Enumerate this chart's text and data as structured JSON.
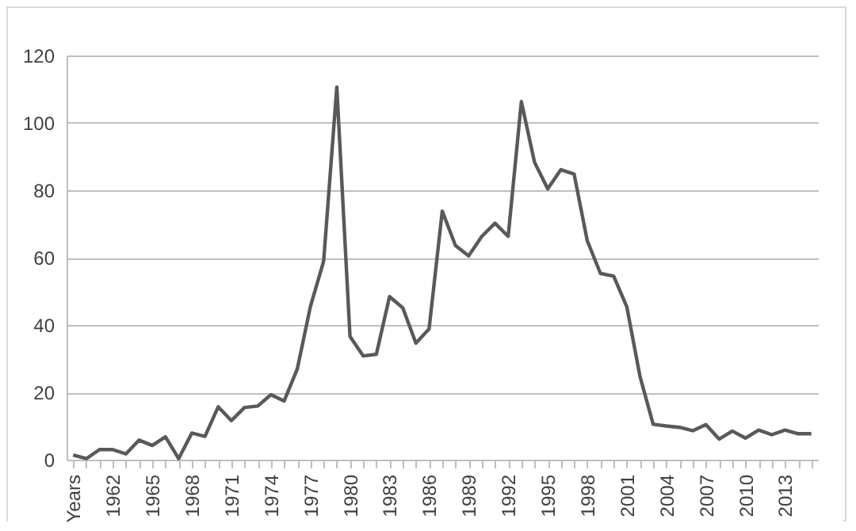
{
  "chart_data": {
    "type": "line",
    "categories": [
      "Years",
      null,
      null,
      "1962",
      null,
      null,
      "1965",
      null,
      null,
      "1968",
      null,
      null,
      "1971",
      null,
      null,
      "1974",
      null,
      null,
      "1977",
      null,
      null,
      "1980",
      null,
      null,
      "1983",
      null,
      null,
      "1986",
      null,
      null,
      "1989",
      null,
      null,
      "1992",
      null,
      null,
      "1995",
      null,
      null,
      "1998",
      null,
      null,
      "2001",
      null,
      null,
      "2004",
      null,
      null,
      "2007",
      null,
      null,
      "2010",
      null,
      null,
      "2013",
      null,
      null
    ],
    "series": [
      {
        "color": "#595959",
        "values": [
          1.4,
          0.3,
          3,
          3,
          1.7,
          5.8,
          4.2,
          6.8,
          0.3,
          7.9,
          6.9,
          15.7,
          11.6,
          15.5,
          15.9,
          19.3,
          17.4,
          26.9,
          45.5,
          58.9,
          110.6,
          36.6,
          30.8,
          31.3,
          48.4,
          45.1,
          34.6,
          38.8,
          73.8,
          63.6,
          60.5,
          66.3,
          70.2,
          66.3,
          106.3,
          88.3,
          80.4,
          86.1,
          84.8,
          65.0,
          55.3,
          54.5,
          45.4,
          24.7,
          10.5,
          10.0,
          9.6,
          8.6,
          10.4,
          6.1,
          8.5,
          6.4,
          8.8,
          7.4,
          8.8,
          7.7,
          7.7
        ]
      }
    ],
    "ylim": [
      0,
      120
    ],
    "yticks": [
      0,
      20,
      40,
      60,
      80,
      100,
      120
    ],
    "grid": "y",
    "marker": "none",
    "line_style": "solid",
    "legend": false
  }
}
